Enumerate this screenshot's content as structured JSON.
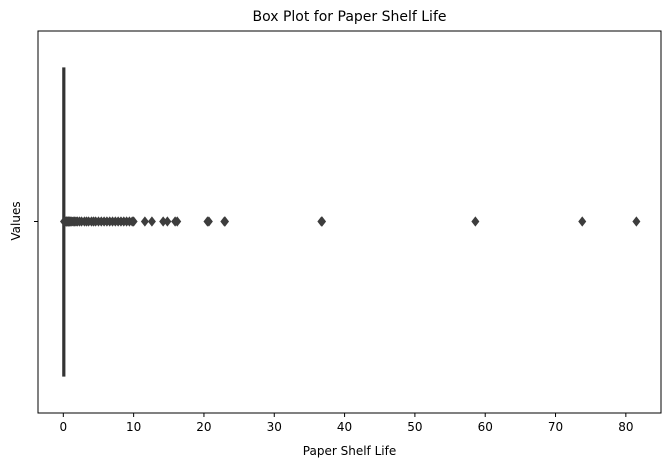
{
  "chart_data": {
    "type": "box",
    "title": "Box Plot for Paper Shelf Life",
    "xlabel": "Paper Shelf Life",
    "ylabel": "Values",
    "xlim": [
      -3.6,
      85.0
    ],
    "xticks": [
      0,
      10,
      20,
      30,
      40,
      50,
      60,
      70,
      80
    ],
    "xtick_labels": [
      "0",
      "10",
      "20",
      "30",
      "40",
      "50",
      "60",
      "70",
      "80"
    ],
    "orientation": "horizontal",
    "box": {
      "min": 0.0,
      "q1": 0.0,
      "median": 0.0,
      "q3": 0.0,
      "max": 0.0
    },
    "outliers": [
      0.1,
      0.2,
      0.3,
      0.4,
      0.5,
      0.6,
      0.7,
      0.8,
      0.9,
      1.0,
      1.2,
      1.4,
      1.6,
      1.8,
      2.0,
      2.3,
      2.6,
      3.0,
      3.3,
      3.6,
      4.0,
      4.3,
      4.6,
      5.0,
      5.4,
      5.8,
      6.2,
      6.6,
      7.0,
      7.4,
      7.8,
      8.2,
      8.6,
      9.0,
      9.4,
      9.8,
      10.0,
      11.6,
      12.6,
      14.2,
      14.8,
      15.9,
      16.2,
      20.5,
      20.7,
      22.9,
      23.0,
      36.7,
      36.8,
      58.6,
      73.8,
      81.5
    ],
    "grid": false,
    "colors": {
      "box": "#333333",
      "outlier_fill": "#3d3d3d"
    }
  }
}
